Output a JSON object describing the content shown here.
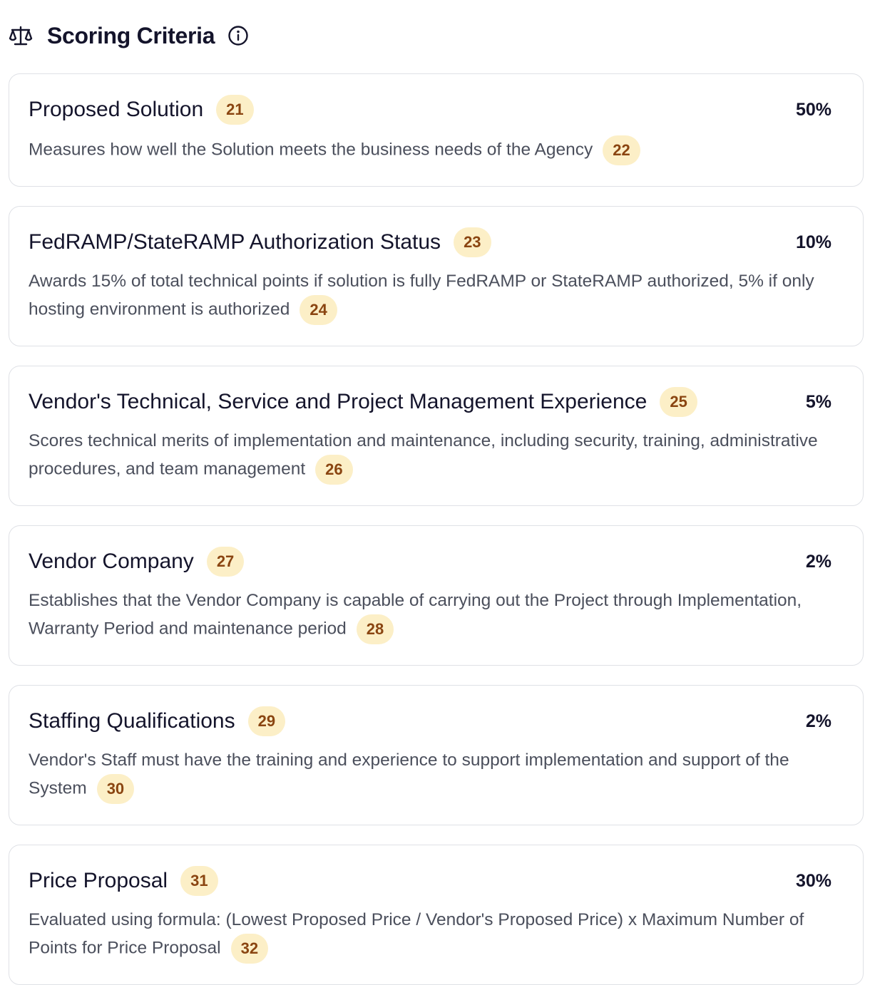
{
  "header": {
    "title": "Scoring Criteria"
  },
  "criteria": [
    {
      "title": "Proposed Solution",
      "title_ref": "21",
      "weight": "50%",
      "description": "Measures how well the Solution meets the business needs of the Agency",
      "description_ref": "22"
    },
    {
      "title": "FedRAMP/StateRAMP Authorization Status",
      "title_ref": "23",
      "weight": "10%",
      "description": "Awards 15% of total technical points if solution is fully FedRAMP or StateRAMP authorized, 5% if only hosting environment is authorized",
      "description_ref": "24"
    },
    {
      "title": "Vendor's Technical, Service and Project Management Experience",
      "title_ref": "25",
      "weight": "5%",
      "description": "Scores technical merits of implementation and maintenance, including security, training, administrative procedures, and team management",
      "description_ref": "26"
    },
    {
      "title": "Vendor Company",
      "title_ref": "27",
      "weight": "2%",
      "description": "Establishes that the Vendor Company is capable of carrying out the Project through Implementation, Warranty Period and maintenance period",
      "description_ref": "28"
    },
    {
      "title": "Staffing Qualifications",
      "title_ref": "29",
      "weight": "2%",
      "description": "Vendor's Staff must have the training and experience to support implementation and support of the System",
      "description_ref": "30"
    },
    {
      "title": "Price Proposal",
      "title_ref": "31",
      "weight": "30%",
      "description": "Evaluated using formula: (Lowest Proposed Price / Vendor's Proposed Price) x Maximum Number of Points for Price Proposal",
      "description_ref": "32"
    }
  ]
}
